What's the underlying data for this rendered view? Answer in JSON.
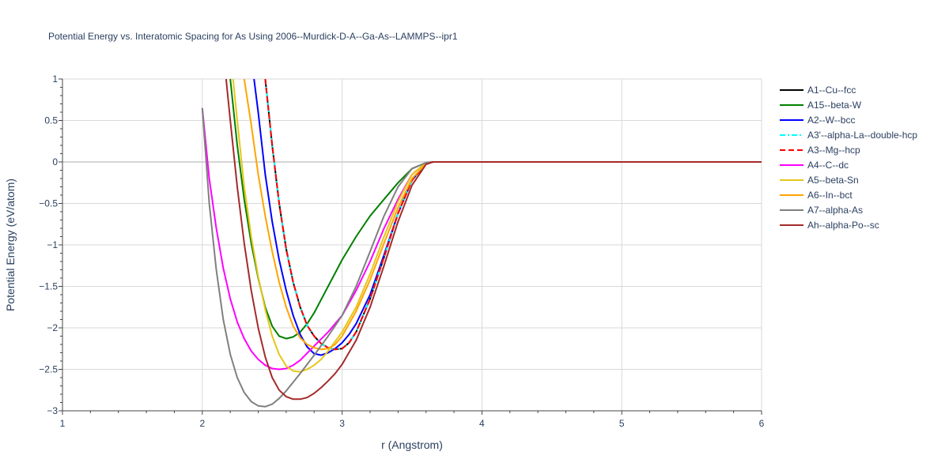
{
  "chart_data": {
    "type": "line",
    "title": "Potential Energy vs. Interatomic Spacing for As Using 2006--Murdick-D-A--Ga-As--LAMMPS--ipr1",
    "xlabel": "r (Angstrom)",
    "ylabel": "Potential Energy (eV/atom)",
    "xlim": [
      1,
      6
    ],
    "ylim": [
      -3,
      1
    ],
    "x_ticks": [
      "1",
      "2",
      "3",
      "4",
      "5",
      "6"
    ],
    "y_ticks": [
      "1",
      "0.5",
      "0",
      "−0.5",
      "−1",
      "−1.5",
      "−2",
      "−2.5",
      "−3"
    ],
    "grid": true,
    "legend_position": "right",
    "series": [
      {
        "name": "A1--Cu--fcc",
        "color": "#000000",
        "dash": "solid",
        "x": [
          2.45,
          2.5,
          2.55,
          2.6,
          2.65,
          2.7,
          2.75,
          2.8,
          2.85,
          2.9,
          2.95,
          3.0,
          3.05,
          3.1,
          3.2,
          3.3,
          3.4,
          3.5,
          3.6,
          3.65,
          6.0
        ],
        "y": [
          1.0,
          0.2,
          -0.5,
          -1.05,
          -1.45,
          -1.75,
          -1.97,
          -2.1,
          -2.19,
          -2.24,
          -2.26,
          -2.25,
          -2.18,
          -2.05,
          -1.65,
          -1.15,
          -0.62,
          -0.22,
          -0.02,
          0,
          0
        ]
      },
      {
        "name": "A15--beta-W",
        "color": "#008000",
        "dash": "solid",
        "x": [
          2.2,
          2.25,
          2.3,
          2.35,
          2.4,
          2.45,
          2.5,
          2.55,
          2.6,
          2.65,
          2.7,
          2.75,
          2.8,
          2.9,
          3.0,
          3.1,
          3.2,
          3.3,
          3.4,
          3.5,
          3.6,
          3.65,
          6.0
        ],
        "y": [
          1.0,
          0.2,
          -0.45,
          -0.98,
          -1.4,
          -1.75,
          -1.98,
          -2.1,
          -2.13,
          -2.11,
          -2.05,
          -1.95,
          -1.82,
          -1.5,
          -1.18,
          -0.9,
          -0.65,
          -0.45,
          -0.25,
          -0.08,
          -0.01,
          0,
          0
        ]
      },
      {
        "name": "A2--W--bcc",
        "color": "#0000ff",
        "dash": "solid",
        "x": [
          2.37,
          2.4,
          2.45,
          2.5,
          2.55,
          2.6,
          2.65,
          2.7,
          2.75,
          2.8,
          2.85,
          2.9,
          2.95,
          3.0,
          3.05,
          3.1,
          3.2,
          3.3,
          3.4,
          3.5,
          3.6,
          3.65,
          6.0
        ],
        "y": [
          1.0,
          0.6,
          -0.15,
          -0.72,
          -1.18,
          -1.55,
          -1.85,
          -2.08,
          -2.23,
          -2.31,
          -2.33,
          -2.3,
          -2.25,
          -2.18,
          -2.08,
          -1.95,
          -1.6,
          -1.12,
          -0.62,
          -0.22,
          -0.02,
          0,
          0
        ]
      },
      {
        "name": "A3'--alpha-La--double-hcp",
        "color": "#00ffff",
        "dash": "dashdot",
        "x": [
          2.45,
          2.5,
          2.55,
          2.6,
          2.65,
          2.7,
          2.75,
          2.8,
          2.85,
          2.9,
          2.95,
          3.0,
          3.05,
          3.1,
          3.2,
          3.3,
          3.4,
          3.5,
          3.6,
          3.65,
          6.0
        ],
        "y": [
          1.0,
          0.2,
          -0.5,
          -1.05,
          -1.45,
          -1.75,
          -1.97,
          -2.1,
          -2.19,
          -2.24,
          -2.26,
          -2.25,
          -2.18,
          -2.05,
          -1.65,
          -1.15,
          -0.62,
          -0.22,
          -0.02,
          0,
          0
        ]
      },
      {
        "name": "A3--Mg--hcp",
        "color": "#ff0000",
        "dash": "dash",
        "x": [
          2.45,
          2.5,
          2.55,
          2.6,
          2.65,
          2.7,
          2.75,
          2.8,
          2.85,
          2.9,
          2.95,
          3.0,
          3.05,
          3.1,
          3.2,
          3.3,
          3.4,
          3.5,
          3.6,
          3.65,
          6.0
        ],
        "y": [
          1.0,
          0.2,
          -0.5,
          -1.05,
          -1.45,
          -1.75,
          -1.97,
          -2.1,
          -2.19,
          -2.24,
          -2.26,
          -2.25,
          -2.18,
          -2.05,
          -1.65,
          -1.15,
          -0.62,
          -0.22,
          -0.02,
          0,
          0
        ]
      },
      {
        "name": "A4--C--dc",
        "color": "#ff00ff",
        "dash": "solid",
        "x": [
          2.0,
          2.05,
          2.1,
          2.15,
          2.2,
          2.25,
          2.3,
          2.35,
          2.4,
          2.45,
          2.5,
          2.55,
          2.6,
          2.65,
          2.7,
          2.8,
          2.9,
          3.0,
          3.1,
          3.2,
          3.3,
          3.4,
          3.5,
          3.6,
          3.65,
          6.0
        ],
        "y": [
          0.65,
          -0.2,
          -0.8,
          -1.28,
          -1.65,
          -1.93,
          -2.13,
          -2.28,
          -2.38,
          -2.45,
          -2.49,
          -2.5,
          -2.49,
          -2.45,
          -2.39,
          -2.22,
          -2.05,
          -1.85,
          -1.55,
          -1.2,
          -0.8,
          -0.45,
          -0.15,
          -0.01,
          0,
          0
        ]
      },
      {
        "name": "A5--beta-Sn",
        "color": "#e6c619",
        "dash": "solid",
        "x": [
          2.22,
          2.25,
          2.3,
          2.35,
          2.4,
          2.45,
          2.5,
          2.55,
          2.6,
          2.65,
          2.7,
          2.75,
          2.8,
          2.85,
          2.9,
          3.0,
          3.1,
          3.2,
          3.3,
          3.4,
          3.5,
          3.6,
          3.65,
          6.0
        ],
        "y": [
          1.0,
          0.5,
          -0.3,
          -0.9,
          -1.38,
          -1.78,
          -2.1,
          -2.32,
          -2.46,
          -2.52,
          -2.53,
          -2.5,
          -2.45,
          -2.38,
          -2.28,
          -2.05,
          -1.75,
          -1.35,
          -0.9,
          -0.48,
          -0.15,
          -0.01,
          0,
          0
        ]
      },
      {
        "name": "A6--In--bct",
        "color": "#ffa500",
        "dash": "solid",
        "x": [
          2.3,
          2.35,
          2.4,
          2.45,
          2.5,
          2.55,
          2.6,
          2.65,
          2.7,
          2.75,
          2.8,
          2.85,
          2.9,
          2.95,
          3.0,
          3.1,
          3.2,
          3.3,
          3.4,
          3.5,
          3.6,
          3.65,
          6.0
        ],
        "y": [
          1.0,
          0.45,
          -0.15,
          -0.65,
          -1.08,
          -1.45,
          -1.75,
          -1.98,
          -2.12,
          -2.2,
          -2.24,
          -2.26,
          -2.25,
          -2.2,
          -2.1,
          -1.8,
          -1.42,
          -0.98,
          -0.55,
          -0.2,
          -0.02,
          0,
          0
        ]
      },
      {
        "name": "A7--alpha-As",
        "color": "#808080",
        "dash": "solid",
        "x": [
          2.0,
          2.05,
          2.1,
          2.15,
          2.2,
          2.25,
          2.3,
          2.35,
          2.4,
          2.45,
          2.5,
          2.55,
          2.6,
          2.7,
          2.8,
          2.9,
          3.0,
          3.1,
          3.2,
          3.3,
          3.4,
          3.5,
          3.6,
          3.65,
          6.0
        ],
        "y": [
          0.65,
          -0.5,
          -1.3,
          -1.9,
          -2.32,
          -2.6,
          -2.78,
          -2.89,
          -2.94,
          -2.95,
          -2.92,
          -2.85,
          -2.76,
          -2.55,
          -2.33,
          -2.1,
          -1.85,
          -1.5,
          -1.08,
          -0.65,
          -0.3,
          -0.08,
          -0.01,
          0,
          0
        ]
      },
      {
        "name": "Ah--alpha-Po--sc",
        "color": "#a52a2a",
        "dash": "solid",
        "x": [
          2.17,
          2.2,
          2.25,
          2.3,
          2.35,
          2.4,
          2.45,
          2.5,
          2.55,
          2.6,
          2.65,
          2.7,
          2.75,
          2.8,
          2.85,
          2.9,
          2.95,
          3.0,
          3.1,
          3.2,
          3.3,
          3.4,
          3.5,
          3.6,
          3.65,
          6.0
        ],
        "y": [
          1.0,
          0.5,
          -0.3,
          -0.98,
          -1.55,
          -2.0,
          -2.35,
          -2.6,
          -2.75,
          -2.83,
          -2.86,
          -2.86,
          -2.84,
          -2.79,
          -2.72,
          -2.64,
          -2.55,
          -2.44,
          -2.15,
          -1.75,
          -1.25,
          -0.72,
          -0.28,
          -0.03,
          0,
          0
        ]
      }
    ]
  }
}
